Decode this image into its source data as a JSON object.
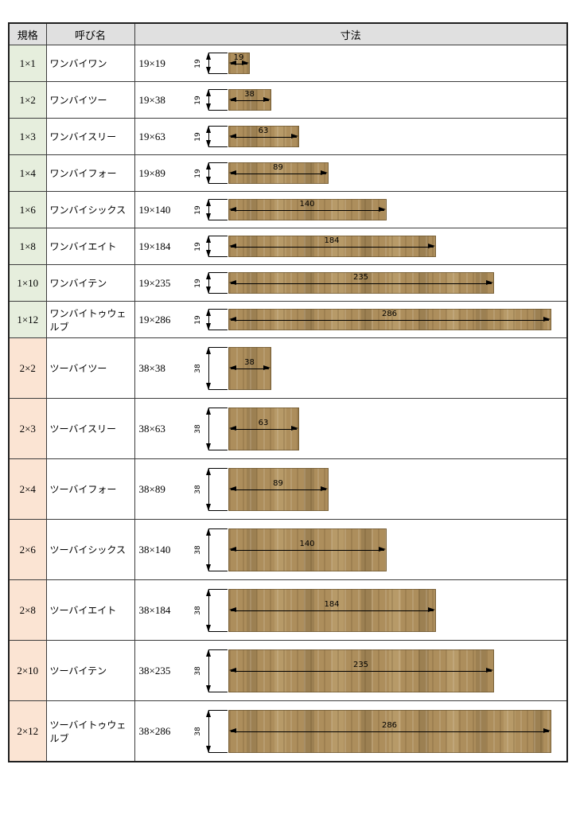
{
  "table": {
    "headers": {
      "standard": "規格",
      "name": "呼び名",
      "dimensions": "寸法"
    },
    "rows": [
      {
        "standard": "1×1",
        "name": "ワンバイワン",
        "dimensions": "19×19",
        "height_mm": 19,
        "width_mm": 19,
        "height_label": "19",
        "width_label": "19",
        "group": "1x"
      },
      {
        "standard": "1×2",
        "name": "ワンバイツー",
        "dimensions": "19×38",
        "height_mm": 19,
        "width_mm": 38,
        "height_label": "19",
        "width_label": "38",
        "group": "1x"
      },
      {
        "standard": "1×3",
        "name": "ワンバイスリー",
        "dimensions": "19×63",
        "height_mm": 19,
        "width_mm": 63,
        "height_label": "19",
        "width_label": "63",
        "group": "1x"
      },
      {
        "standard": "1×4",
        "name": "ワンバイフォー",
        "dimensions": "19×89",
        "height_mm": 19,
        "width_mm": 89,
        "height_label": "19",
        "width_label": "89",
        "group": "1x"
      },
      {
        "standard": "1×6",
        "name": "ワンバイシックス",
        "dimensions": "19×140",
        "height_mm": 19,
        "width_mm": 140,
        "height_label": "19",
        "width_label": "140",
        "group": "1x"
      },
      {
        "standard": "1×8",
        "name": "ワンバイエイト",
        "dimensions": "19×184",
        "height_mm": 19,
        "width_mm": 184,
        "height_label": "19",
        "width_label": "184",
        "group": "1x"
      },
      {
        "standard": "1×10",
        "name": "ワンバイテン",
        "dimensions": "19×235",
        "height_mm": 19,
        "width_mm": 235,
        "height_label": "19",
        "width_label": "235",
        "group": "1x"
      },
      {
        "standard": "1×12",
        "name": "ワンバイトゥウェルブ",
        "dimensions": "19×286",
        "height_mm": 19,
        "width_mm": 286,
        "height_label": "19",
        "width_label": "286",
        "group": "1x"
      },
      {
        "standard": "2×2",
        "name": "ツーバイツー",
        "dimensions": "38×38",
        "height_mm": 38,
        "width_mm": 38,
        "height_label": "38",
        "width_label": "38",
        "group": "2x"
      },
      {
        "standard": "2×3",
        "name": "ツーバイスリー",
        "dimensions": "38×63",
        "height_mm": 38,
        "width_mm": 63,
        "height_label": "38",
        "width_label": "63",
        "group": "2x"
      },
      {
        "standard": "2×4",
        "name": "ツーバイフォー",
        "dimensions": "38×89",
        "height_mm": 38,
        "width_mm": 89,
        "height_label": "38",
        "width_label": "89",
        "group": "2x"
      },
      {
        "standard": "2×6",
        "name": "ツーバイシックス",
        "dimensions": "38×140",
        "height_mm": 38,
        "width_mm": 140,
        "height_label": "38",
        "width_label": "140",
        "group": "2x"
      },
      {
        "standard": "2×8",
        "name": "ツーバイエイト",
        "dimensions": "38×184",
        "height_mm": 38,
        "width_mm": 184,
        "height_label": "38",
        "width_label": "184",
        "group": "2x"
      },
      {
        "standard": "2×10",
        "name": "ツーバイテン",
        "dimensions": "38×235",
        "height_mm": 38,
        "width_mm": 235,
        "height_label": "38",
        "width_label": "235",
        "group": "2x"
      },
      {
        "standard": "2×12",
        "name": "ツーバイトゥウェルブ",
        "dimensions": "38×286",
        "height_mm": 38,
        "width_mm": 286,
        "height_label": "38",
        "width_label": "286",
        "group": "2x"
      }
    ],
    "colors": {
      "header_bg": "#e0e0e0",
      "group_1x_bg": "#e6eedd",
      "group_2x_bg": "#fbe4d3",
      "wood_light": "#ad8e5c",
      "wood_dark": "#9c8052",
      "dimension_line": "#000000"
    }
  }
}
